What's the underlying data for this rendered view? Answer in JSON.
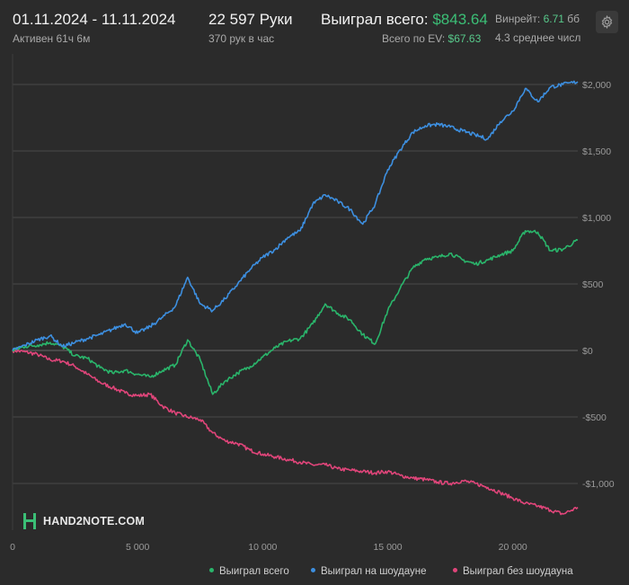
{
  "header": {
    "date_range": "01.11.2024 - 11.11.2024",
    "active_time": "Активен 61ч 6м",
    "hands": "22 597 Руки",
    "hands_per_hour": "370 рук в час",
    "won_label": "Выиграл всего:",
    "won_value": "$843.64",
    "ev_label": "Всего по EV:",
    "ev_value": "$67.63",
    "winrate_label": "Винрейт:",
    "winrate_value": "6.71",
    "winrate_unit": "бб",
    "avg_text": "4.3 среднее числ"
  },
  "logo": {
    "text": "HAND2NOTE.COM"
  },
  "colors": {
    "background": "#2b2b2b",
    "won_total": "#2ab56b",
    "showdown": "#3d8fe0",
    "non_showdown": "#e0457a",
    "grid": "#4a4a4a"
  },
  "chart_data": {
    "type": "line",
    "xlim": [
      0,
      22597
    ],
    "ylim": [
      -1300,
      2150
    ],
    "x_ticks": [
      0,
      5000,
      10000,
      15000,
      20000
    ],
    "x_tick_labels": [
      "0",
      "5 000",
      "10 000",
      "15 000",
      "20 000"
    ],
    "y_ticks": [
      2000,
      1500,
      1000,
      500,
      0,
      -500,
      -1000
    ],
    "y_tick_labels": [
      "$2,000",
      "$1,500",
      "$1,000",
      "$500",
      "$0",
      "-$500",
      "-$1,000"
    ],
    "grid": "horizontal",
    "legend_position": "bottom-right",
    "series": [
      {
        "name": "Выиграл всего",
        "color": "#2ab56b",
        "x": [
          0,
          500,
          1000,
          1500,
          2000,
          2500,
          3000,
          3500,
          4000,
          4500,
          5000,
          5500,
          6000,
          6500,
          7000,
          7500,
          8000,
          8500,
          9000,
          9500,
          10000,
          10500,
          11000,
          11500,
          12000,
          12500,
          13000,
          13500,
          14000,
          14500,
          15000,
          15500,
          16000,
          16500,
          17000,
          17500,
          18000,
          18500,
          19000,
          19500,
          20000,
          20500,
          21000,
          21500,
          22000,
          22597
        ],
        "values": [
          0,
          30,
          40,
          60,
          30,
          -40,
          -60,
          -130,
          -170,
          -150,
          -180,
          -200,
          -150,
          -110,
          80,
          -70,
          -330,
          -230,
          -170,
          -120,
          -50,
          20,
          70,
          90,
          200,
          350,
          280,
          230,
          120,
          50,
          300,
          470,
          620,
          690,
          700,
          730,
          680,
          650,
          680,
          720,
          750,
          900,
          890,
          750,
          760,
          830
        ]
      },
      {
        "name": "Выиграл на шоудауне",
        "color": "#3d8fe0",
        "x": [
          0,
          500,
          1000,
          1500,
          2000,
          2500,
          3000,
          3500,
          4000,
          4500,
          5000,
          5500,
          6000,
          6500,
          7000,
          7500,
          8000,
          8500,
          9000,
          9500,
          10000,
          10500,
          11000,
          11500,
          12000,
          12500,
          13000,
          13500,
          14000,
          14500,
          15000,
          15500,
          16000,
          16500,
          17000,
          17500,
          18000,
          18500,
          19000,
          19500,
          20000,
          20500,
          21000,
          21500,
          22000,
          22597
        ],
        "values": [
          0,
          40,
          80,
          110,
          30,
          60,
          90,
          120,
          160,
          200,
          130,
          180,
          250,
          330,
          550,
          350,
          300,
          390,
          500,
          610,
          700,
          760,
          850,
          900,
          1100,
          1170,
          1120,
          1060,
          950,
          1100,
          1360,
          1510,
          1640,
          1690,
          1700,
          1680,
          1650,
          1620,
          1590,
          1720,
          1800,
          1970,
          1870,
          1980,
          2000,
          2020
        ]
      },
      {
        "name": "Выиграл без шоудауна",
        "color": "#e0457a",
        "x": [
          0,
          500,
          1000,
          1500,
          2000,
          2500,
          3000,
          3500,
          4000,
          4500,
          5000,
          5500,
          6000,
          6500,
          7000,
          7500,
          8000,
          8500,
          9000,
          9500,
          10000,
          10500,
          11000,
          11500,
          12000,
          12500,
          13000,
          13500,
          14000,
          14500,
          15000,
          15500,
          16000,
          16500,
          17000,
          17500,
          18000,
          18500,
          19000,
          19500,
          20000,
          20500,
          21000,
          21500,
          22000,
          22597
        ],
        "values": [
          0,
          -10,
          -30,
          -70,
          -80,
          -120,
          -180,
          -240,
          -280,
          -320,
          -340,
          -330,
          -420,
          -470,
          -500,
          -520,
          -620,
          -680,
          -700,
          -750,
          -780,
          -800,
          -820,
          -840,
          -860,
          -860,
          -890,
          -900,
          -910,
          -920,
          -910,
          -940,
          -960,
          -970,
          -990,
          -1000,
          -980,
          -1000,
          -1030,
          -1070,
          -1110,
          -1150,
          -1170,
          -1200,
          -1230,
          -1180
        ]
      }
    ]
  }
}
